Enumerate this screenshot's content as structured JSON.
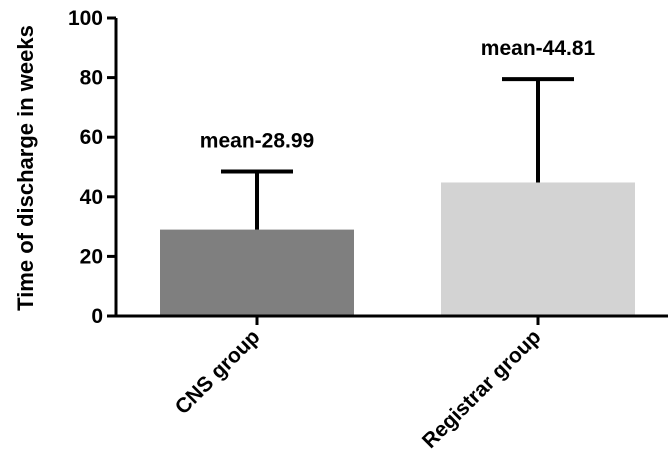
{
  "chart_data": {
    "type": "bar",
    "categories": [
      "CNS group",
      "Registrar group"
    ],
    "values": [
      28.99,
      44.81
    ],
    "error_upper": [
      48.5,
      79.5
    ],
    "bar_colors": [
      "#7f7f7f",
      "#d3d3d3"
    ],
    "annotations": [
      "mean-28.99",
      "mean-44.81"
    ],
    "title": "",
    "xlabel": "",
    "ylabel": "Time of discharge in weeks",
    "ylim": [
      0,
      100
    ],
    "yticks": [
      0,
      20,
      40,
      60,
      80,
      100
    ],
    "grid": false,
    "legend": "none"
  }
}
